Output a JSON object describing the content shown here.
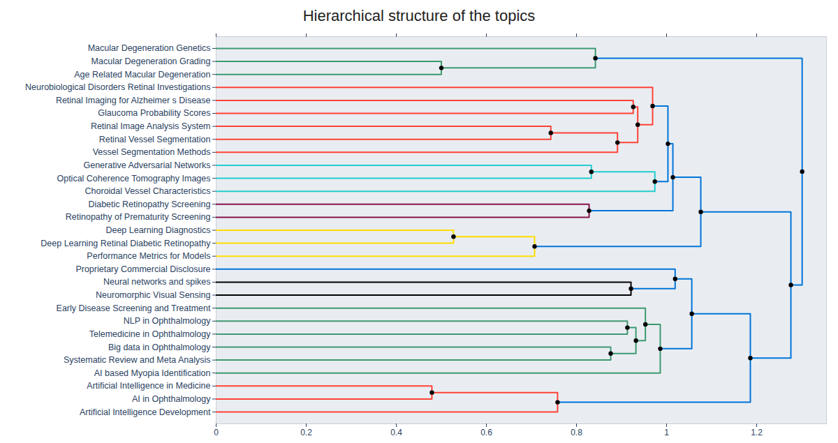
{
  "chart_data": {
    "type": "dendrogram",
    "title": "Hierarchical structure of the topics",
    "xlim": [
      0,
      1.355
    ],
    "xticks": [
      0,
      0.2,
      0.4,
      0.6,
      0.8,
      1,
      1.2
    ],
    "tree": {
      "height": 1.301,
      "color": "#0074D9",
      "children": [
        {
          "height": 0.842,
          "color": "#3D9970",
          "children": [
            {
              "name": "Macular Degeneration Genetics"
            },
            {
              "height": 0.5,
              "color": "#3D9970",
              "children": [
                {
                  "name": "Macular Degeneration Grading"
                },
                {
                  "name": "Age Related Macular Degeneration"
                }
              ]
            }
          ]
        },
        {
          "height": 1.276,
          "color": "#0074D9",
          "children": [
            {
              "height": 1.076,
              "color": "#0074D9",
              "children": [
                {
                  "height": 1.014,
                  "color": "#0074D9",
                  "children": [
                    {
                      "height": 1.003,
                      "color": "#0074D9",
                      "children": [
                        {
                          "height": 0.969,
                          "color": "#FF4136",
                          "children": [
                            {
                              "name": "Neurobiological Disorders Retinal Investigations"
                            },
                            {
                              "height": 0.936,
                              "color": "#FF4136",
                              "children": [
                                {
                                  "height": 0.926,
                                  "color": "#FF4136",
                                  "children": [
                                    {
                                      "name": "Retinal Imaging for Alzheimer s Disease"
                                    },
                                    {
                                      "name": "Glaucoma Probability Scores"
                                    }
                                  ]
                                },
                                {
                                  "height": 0.891,
                                  "color": "#FF4136",
                                  "children": [
                                    {
                                      "height": 0.743,
                                      "color": "#FF4136",
                                      "children": [
                                        {
                                          "name": "Retinal Image Analysis System"
                                        },
                                        {
                                          "name": "Retinal Vessel Segmentation"
                                        }
                                      ]
                                    },
                                    {
                                      "name": "Vessel Segmentation Methods"
                                    }
                                  ]
                                }
                              ]
                            }
                          ]
                        },
                        {
                          "height": 0.974,
                          "color": "#23CDCD",
                          "children": [
                            {
                              "height": 0.833,
                              "color": "#23CDCD",
                              "children": [
                                {
                                  "name": "Generative Adversarial Networks"
                                },
                                {
                                  "name": "Optical Coherence Tomography Images"
                                }
                              ]
                            },
                            {
                              "name": "Choroidal Vessel Characteristics"
                            }
                          ]
                        }
                      ]
                    },
                    {
                      "height": 0.828,
                      "color": "#85144B",
                      "children": [
                        {
                          "name": "Diabetic Retinopathy Screening"
                        },
                        {
                          "name": "Retinopathy of Prematurity Screening"
                        }
                      ]
                    }
                  ]
                },
                {
                  "height": 0.707,
                  "color": "#FFDC00",
                  "children": [
                    {
                      "height": 0.527,
                      "color": "#FFDC00",
                      "children": [
                        {
                          "name": "Deep Learning Diagnostics"
                        },
                        {
                          "name": "Deep Learning Retinal Diabetic Retinopathy"
                        }
                      ]
                    },
                    {
                      "name": "Performance Metrics for Models"
                    }
                  ]
                }
              ]
            },
            {
              "height": 1.186,
              "color": "#0074D9",
              "children": [
                {
                  "height": 1.056,
                  "color": "#0074D9",
                  "children": [
                    {
                      "height": 1.019,
                      "color": "#0074D9",
                      "children": [
                        {
                          "name": "Proprietary Commercial Disclosure"
                        },
                        {
                          "height": 0.921,
                          "color": "#000000",
                          "children": [
                            {
                              "name": "Neural networks and spikes"
                            },
                            {
                              "name": "Neuromorphic Visual Sensing"
                            }
                          ]
                        }
                      ]
                    },
                    {
                      "height": 0.986,
                      "color": "#3D9970",
                      "children": [
                        {
                          "height": 0.953,
                          "color": "#3D9970",
                          "children": [
                            {
                              "name": "Early Disease Screening and Treatment"
                            },
                            {
                              "height": 0.932,
                              "color": "#3D9970",
                              "children": [
                                {
                                  "height": 0.913,
                                  "color": "#3D9970",
                                  "children": [
                                    {
                                      "name": "NLP in Ophthalmology"
                                    },
                                    {
                                      "name": "Telemedicine in Ophthalmology"
                                    }
                                  ]
                                },
                                {
                                  "height": 0.876,
                                  "color": "#3D9970",
                                  "children": [
                                    {
                                      "name": "Big data in Ophthalmology"
                                    },
                                    {
                                      "name": "Systematic Review and Meta Analysis"
                                    }
                                  ]
                                }
                              ]
                            }
                          ]
                        },
                        {
                          "name": "AI based Myopia Identification"
                        }
                      ]
                    }
                  ]
                },
                {
                  "height": 0.758,
                  "color": "#FF4136",
                  "children": [
                    {
                      "height": 0.479,
                      "color": "#FF4136",
                      "children": [
                        {
                          "name": "Artificial Intelligence in Medicine"
                        },
                        {
                          "name": "AI in Ophthalmology"
                        }
                      ]
                    },
                    {
                      "name": "Artificial Intelligence Development"
                    }
                  ]
                }
              ]
            }
          ]
        }
      ]
    }
  }
}
